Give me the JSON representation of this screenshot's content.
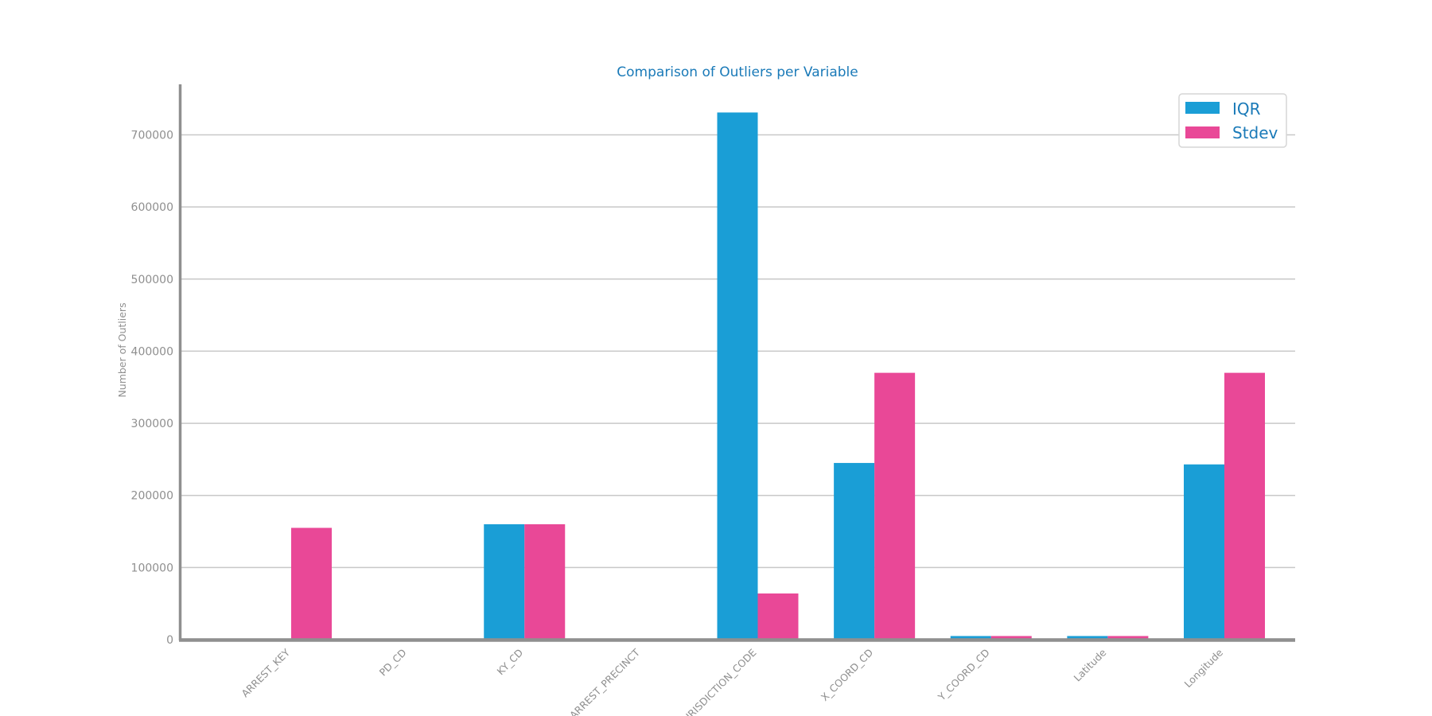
{
  "chart_data": {
    "type": "bar",
    "title": "Comparison of Outliers per Variable",
    "xlabel": "",
    "ylabel": "Number of Outliers",
    "categories": [
      "ARREST_KEY",
      "PD_CD",
      "KY_CD",
      "ARREST_PRECINCT",
      "JURISDICTION_CODE",
      "X_COORD_CD",
      "Y_COORD_CD",
      "Latitude",
      "Longitude"
    ],
    "series": [
      {
        "name": "IQR",
        "color": "#1a9ed6",
        "values": [
          0,
          0,
          160000,
          0,
          731000,
          245000,
          5000,
          5000,
          243000
        ]
      },
      {
        "name": "Stdev",
        "color": "#e94897",
        "values": [
          155000,
          0,
          160000,
          0,
          64000,
          370000,
          5000,
          5000,
          370000
        ]
      }
    ],
    "yticks": [
      "0",
      "100000",
      "200000",
      "300000",
      "400000",
      "500000",
      "600000",
      "700000"
    ],
    "ylim": [
      0,
      770000
    ],
    "grid": true,
    "legend_position": "top-right"
  }
}
